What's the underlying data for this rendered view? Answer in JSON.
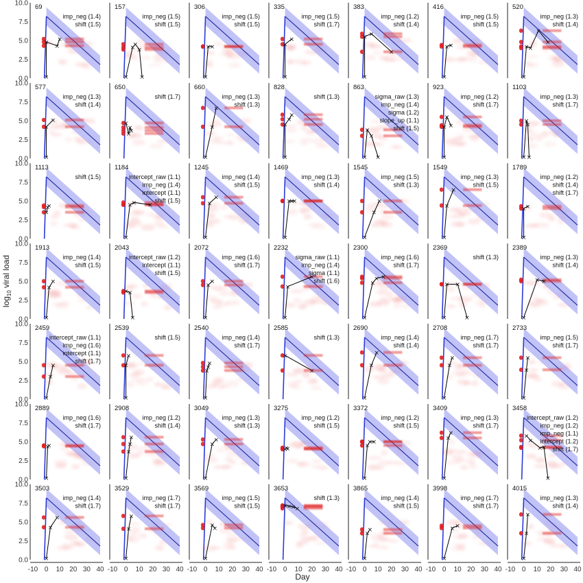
{
  "chart_data": {
    "type": "line",
    "layout": "small-multiples",
    "xlabel": "Day",
    "ylabel_base": "log",
    "ylabel_sub": "10",
    "ylabel_rest": " viral load",
    "xlim": [
      -10,
      40
    ],
    "ylim": [
      0,
      10
    ],
    "xticks": [
      "-10",
      "0",
      "10",
      "20",
      "30",
      "40"
    ],
    "yticks": [
      "0.0",
      "2.5",
      "5.0",
      "7.5",
      "10.0"
    ],
    "colors": {
      "band": "#9fa3f2",
      "line": "#1f2a9e",
      "rise": "#2a3ad8",
      "points": "#e02020",
      "observed": "#000000"
    },
    "panels": [
      {
        "id": "69",
        "annotations": [
          "imp_neg (1.4)",
          "shift (1.5)"
        ],
        "observed": [
          [
            0,
            0.2
          ],
          [
            0,
            4.8
          ],
          [
            8,
            4.3
          ],
          [
            10,
            5.2
          ]
        ]
      },
      {
        "id": "157",
        "annotations": [
          "imp_neg (1.5)",
          "shift (1.5)"
        ],
        "observed": [
          [
            0,
            0.2
          ],
          [
            5,
            4.1
          ],
          [
            7,
            4.5
          ],
          [
            10,
            3.8
          ],
          [
            12,
            0.2
          ]
        ]
      },
      {
        "id": "306",
        "annotations": [
          "imp_neg (1.5)",
          "shift (1.5)"
        ],
        "observed": [
          [
            0,
            0.2
          ],
          [
            2,
            4.2
          ],
          [
            5,
            4.2
          ]
        ]
      },
      {
        "id": "335",
        "annotations": [
          "imp_neg (1.5)",
          "shift (1.7)"
        ],
        "observed": [
          [
            0,
            0.2
          ],
          [
            0,
            4.5
          ],
          [
            5,
            5.2
          ]
        ]
      },
      {
        "id": "383",
        "annotations": [
          "imp_neg (1.2)",
          "shift (1.4)"
        ],
        "observed": [
          [
            0,
            0.2
          ],
          [
            0,
            5.5
          ],
          [
            5,
            5.9
          ],
          [
            20,
            3.5
          ]
        ]
      },
      {
        "id": "416",
        "annotations": [
          "imp_neg (1.5)",
          "shift (1.5)"
        ],
        "observed": [
          [
            0,
            0.2
          ],
          [
            2,
            4.2
          ],
          [
            5,
            4.4
          ]
        ]
      },
      {
        "id": "520",
        "annotations": [
          "imp_neg (1.3)",
          "shift (1.4)"
        ],
        "observed": [
          [
            0,
            0.2
          ],
          [
            2,
            4.2
          ],
          [
            5,
            4.0
          ],
          [
            11,
            6.3
          ],
          [
            18,
            4.8
          ]
        ]
      },
      {
        "id": "577",
        "annotations": [
          "imp_neg (1.3)",
          "shift (1.4)"
        ],
        "observed": [
          [
            0,
            0.2
          ],
          [
            0,
            4.2
          ],
          [
            5,
            5.1
          ]
        ]
      },
      {
        "id": "650",
        "annotations": [
          "shift (1.7)"
        ],
        "observed": [
          [
            0,
            4.7
          ],
          [
            2,
            3.3
          ],
          [
            3,
            4.1
          ],
          [
            4,
            3.7
          ]
        ]
      },
      {
        "id": "660",
        "annotations": [
          "imp_neg (1.3)",
          "shift (1.3)"
        ],
        "observed": [
          [
            0,
            0.2
          ],
          [
            5,
            4.2
          ],
          [
            8,
            6.7
          ]
        ]
      },
      {
        "id": "828",
        "annotations": [
          "shift (1.3)"
        ],
        "observed": [
          [
            0,
            0.2
          ],
          [
            0,
            4.5
          ],
          [
            3,
            5.2
          ],
          [
            5,
            5.8
          ]
        ]
      },
      {
        "id": "863",
        "annotations": [
          "sigma_raw (1.3)",
          "imp_neg (1.4)",
          "sigma (1.2)",
          "slope_up (1.1)",
          "shift (1.5)"
        ],
        "observed": [
          [
            0,
            0.2
          ],
          [
            2,
            3.8
          ],
          [
            5,
            3.0
          ],
          [
            10,
            0.2
          ]
        ]
      },
      {
        "id": "923",
        "annotations": [
          "imp_neg (1.2)",
          "shift (1.7)"
        ],
        "observed": [
          [
            0,
            0.2
          ],
          [
            0,
            4.2
          ],
          [
            2,
            5.5
          ],
          [
            5,
            4.4
          ]
        ]
      },
      {
        "id": "1103",
        "annotations": [
          "imp_neg (1.3)",
          "shift (1.7)"
        ],
        "observed": [
          [
            0,
            0.2
          ],
          [
            2,
            5.0
          ],
          [
            3,
            4.5
          ],
          [
            4,
            0.2
          ]
        ]
      },
      {
        "id": "1113",
        "annotations": [
          "shift (1.5)"
        ],
        "observed": [
          [
            0,
            3.5
          ],
          [
            1,
            4.2
          ],
          [
            2,
            4.4
          ]
        ]
      },
      {
        "id": "1184",
        "annotations": [
          "intercept_raw (1.1)",
          "imp_neg (1.4)",
          "intercept (1.1)",
          "shift (1.5)"
        ],
        "observed": [
          [
            0,
            0.2
          ],
          [
            3,
            4.5
          ],
          [
            6,
            4.8
          ],
          [
            18,
            4.5
          ]
        ]
      },
      {
        "id": "1245",
        "annotations": [
          "imp_neg (1.4)",
          "shift (1.5)"
        ],
        "observed": [
          [
            0,
            0.2
          ],
          [
            3,
            4.7
          ],
          [
            8,
            5.5
          ]
        ]
      },
      {
        "id": "1469",
        "annotations": [
          "imp_neg (1.3)",
          "shift (1.4)"
        ],
        "observed": [
          [
            0,
            0.2
          ],
          [
            3,
            5.0
          ],
          [
            5,
            5.0
          ],
          [
            7,
            5.0
          ]
        ]
      },
      {
        "id": "1545",
        "annotations": [
          "imp_neg (1.5)",
          "shift (1.3)"
        ],
        "observed": [
          [
            0,
            0.2
          ],
          [
            7,
            3.5
          ],
          [
            11,
            5.0
          ]
        ]
      },
      {
        "id": "1549",
        "annotations": [
          "imp_neg (1.3)",
          "shift (1.5)"
        ],
        "observed": [
          [
            0,
            0.2
          ],
          [
            2,
            4.4
          ],
          [
            7,
            6.5
          ]
        ]
      },
      {
        "id": "1789",
        "annotations": [
          "imp_neg (1.2)",
          "shift (1.4)",
          "shift (1.7)"
        ],
        "observed": [
          [
            0,
            0.2
          ],
          [
            0,
            4.0
          ],
          [
            3,
            4.3
          ]
        ]
      },
      {
        "id": "1913",
        "annotations": [
          "imp_neg (1.4)",
          "shift (1.5)"
        ],
        "observed": [
          [
            0,
            0.2
          ],
          [
            2,
            4.2
          ],
          [
            5,
            5.0
          ]
        ]
      },
      {
        "id": "2043",
        "annotations": [
          "intercept_raw (1.2)",
          "intercept (1.1)",
          "shift (1.5)"
        ],
        "observed": [
          [
            0,
            3.7
          ],
          [
            3,
            3.5
          ],
          [
            5,
            0.2
          ]
        ]
      },
      {
        "id": "2072",
        "annotations": [
          "imp_neg (1.6)",
          "shift (1.7)"
        ],
        "observed": [
          [
            0,
            0.2
          ],
          [
            2,
            4.5
          ],
          [
            5,
            5.0
          ]
        ]
      },
      {
        "id": "2232",
        "annotations": [
          "sigma_raw (1.1)",
          "imp_neg (1.4)",
          "sigma (1.1)",
          "shift (1.6)"
        ],
        "observed": [
          [
            0,
            0.2
          ],
          [
            2,
            4.3
          ],
          [
            20,
            5.6
          ]
        ]
      },
      {
        "id": "2300",
        "annotations": [
          "imp_neg (1.6)",
          "shift (1.7)"
        ],
        "observed": [
          [
            0,
            0.2
          ],
          [
            6,
            4.8
          ],
          [
            9,
            5.4
          ],
          [
            14,
            5.6
          ]
        ]
      },
      {
        "id": "2369",
        "annotations": [
          "shift (1.3)"
        ],
        "observed": [
          [
            0,
            0.2
          ],
          [
            2,
            4.6
          ],
          [
            10,
            4.6
          ],
          [
            17,
            0.2
          ]
        ]
      },
      {
        "id": "2389",
        "annotations": [
          "imp_neg (1.3)",
          "shift (1.4)"
        ],
        "observed": [
          [
            0,
            0.2
          ],
          [
            10,
            5.2
          ],
          [
            15,
            5.0
          ]
        ]
      },
      {
        "id": "2459",
        "annotations": [
          "intercept_raw (1.1)",
          "imp_neg (1.6)",
          "intercept (1.1)",
          "shift (1.7)"
        ],
        "observed": [
          [
            0,
            0.2
          ],
          [
            3,
            3.0
          ],
          [
            5,
            4.5
          ]
        ]
      },
      {
        "id": "2539",
        "annotations": [
          "shift (1.5)"
        ],
        "observed": [
          [
            0,
            0.2
          ],
          [
            0,
            4.5
          ],
          [
            2,
            5.8
          ]
        ]
      },
      {
        "id": "2540",
        "annotations": [
          "imp_neg (1.4)",
          "shift (1.7)"
        ],
        "observed": [
          [
            0,
            0.2
          ],
          [
            1,
            3.8
          ],
          [
            2,
            4.3
          ],
          [
            3,
            4.8
          ]
        ]
      },
      {
        "id": "2585",
        "annotations": [
          "shift (1.3)"
        ],
        "observed": [
          [
            0,
            5.8
          ],
          [
            20,
            3.8
          ]
        ]
      },
      {
        "id": "2690",
        "annotations": [
          "imp_neg (1.4)",
          "shift (1.4)"
        ],
        "observed": [
          [
            0,
            0.2
          ],
          [
            5,
            4.5
          ],
          [
            9,
            6.2
          ]
        ]
      },
      {
        "id": "2708",
        "annotations": [
          "imp_neg (1.7)",
          "shift (1.7)"
        ],
        "observed": [
          [
            0,
            0.2
          ],
          [
            4,
            4.5
          ],
          [
            6,
            5.5
          ]
        ]
      },
      {
        "id": "2733",
        "annotations": [
          "imp_neg (1.5)",
          "shift (1.7)"
        ],
        "observed": [
          [
            0,
            0.2
          ],
          [
            2,
            3.9
          ],
          [
            3,
            5.5
          ]
        ]
      },
      {
        "id": "2889",
        "annotations": [
          "imp_neg (1.6)",
          "shift (1.7)"
        ],
        "observed": [
          [
            0,
            0.2
          ],
          [
            1,
            4.4
          ],
          [
            2,
            4.5
          ]
        ]
      },
      {
        "id": "2908",
        "annotations": [
          "imp_neg (1.2)",
          "shift (1.4)"
        ],
        "observed": [
          [
            0,
            0.2
          ],
          [
            2,
            3.7
          ],
          [
            3,
            4.7
          ],
          [
            4,
            5.6
          ]
        ]
      },
      {
        "id": "3049",
        "annotations": [
          "imp_neg (1.3)",
          "shift (1.3)"
        ],
        "observed": [
          [
            0,
            0.2
          ],
          [
            5,
            4.7
          ],
          [
            8,
            5.3
          ]
        ]
      },
      {
        "id": "3275",
        "annotations": [
          "imp_neg (1.2)",
          "shift (1.5)"
        ],
        "observed": [
          [
            0,
            4.0
          ],
          [
            1,
            4.2
          ],
          [
            2,
            4.1
          ]
        ]
      },
      {
        "id": "3372",
        "annotations": [
          "imp_neg (1.2)",
          "shift (1.5)"
        ],
        "observed": [
          [
            0,
            0.2
          ],
          [
            2,
            4.5
          ],
          [
            4,
            5.0
          ],
          [
            7,
            5.0
          ]
        ]
      },
      {
        "id": "3409",
        "annotations": [
          "imp_neg (1.3)",
          "shift (1.7)"
        ],
        "observed": [
          [
            0,
            0.2
          ],
          [
            3,
            5.5
          ],
          [
            5,
            6.2
          ]
        ]
      },
      {
        "id": "3458",
        "annotations": [
          "intercept_raw (1.2)",
          "imp_neg (1.2)",
          "imp_neg (1.1)",
          "intercept (1.2)",
          "shift (1.7)"
        ],
        "observed": [
          [
            2,
            5.8
          ],
          [
            5,
            5.2
          ],
          [
            12,
            4.2
          ],
          [
            15,
            4.3
          ],
          [
            18,
            0.2
          ]
        ]
      },
      {
        "id": "3503",
        "annotations": [
          "imp_neg (1.4)",
          "shift (1.7)"
        ],
        "observed": [
          [
            0,
            0.2
          ],
          [
            3,
            4.3
          ],
          [
            8,
            5.6
          ]
        ]
      },
      {
        "id": "3529",
        "annotations": [
          "imp_neg (1.7)",
          "shift (1.7)"
        ],
        "observed": [
          [
            0,
            0.2
          ],
          [
            2,
            4.1
          ],
          [
            4,
            5.8
          ]
        ]
      },
      {
        "id": "3569",
        "annotations": [
          "imp_neg (1.5)",
          "shift (1.5)"
        ],
        "observed": [
          [
            0,
            0.2
          ],
          [
            5,
            4.6
          ],
          [
            7,
            4.2
          ]
        ]
      },
      {
        "id": "3653",
        "annotations": [
          "shift (1.3)"
        ],
        "observed": [
          [
            0,
            7.2
          ],
          [
            3,
            7.1
          ],
          [
            6,
            7.0
          ],
          [
            9,
            6.8
          ]
        ]
      },
      {
        "id": "3865",
        "annotations": [
          "imp_neg (1.4)",
          "shift (1.5)"
        ],
        "observed": [
          [
            0,
            0.2
          ],
          [
            2,
            3.5
          ],
          [
            4,
            4.0
          ]
        ]
      },
      {
        "id": "3998",
        "annotations": [
          "imp_neg (1.7)",
          "shift (1.7)"
        ],
        "observed": [
          [
            0,
            0.2
          ],
          [
            6,
            4.2
          ],
          [
            10,
            4.5
          ]
        ]
      },
      {
        "id": "4015",
        "annotations": [
          "imp_neg (1.3)",
          "shift (1.4)"
        ],
        "observed": [
          [
            0,
            0.2
          ],
          [
            2,
            3.5
          ],
          [
            3,
            6.0
          ]
        ]
      }
    ]
  }
}
